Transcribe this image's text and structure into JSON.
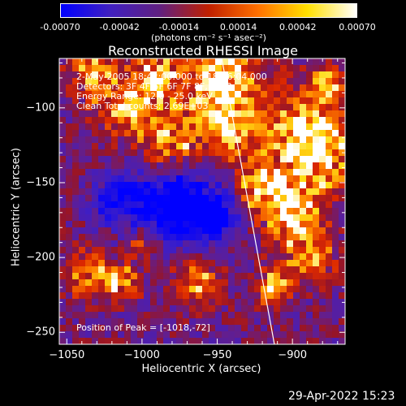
{
  "chart_data": {
    "type": "heatmap",
    "title": "Reconstructed RHESSI Image",
    "xlabel": "Heliocentric X (arcsec)",
    "ylabel": "Heliocentric Y (arcsec)",
    "xlim": [
      -1055,
      -865
    ],
    "ylim": [
      -258,
      -67
    ],
    "xticks": [
      -1050,
      -1000,
      -950,
      -900
    ],
    "yticks": [
      -250,
      -200,
      -150,
      -100
    ],
    "colorbar": {
      "ticks": [
        "-0.00070",
        "-0.00042",
        "-0.00014",
        "0.00014",
        "0.00042",
        "0.00070"
      ],
      "range": [
        -0.0007,
        0.0007
      ],
      "units": "(photons cm⁻² s⁻¹ asec⁻²)",
      "colors": [
        "#0000ff",
        "#4020c0",
        "#602080",
        "#c02000",
        "#ff7000",
        "#ffe000",
        "#ffffff"
      ]
    },
    "annotations": {
      "time": "2-May-2005 18:42:00.000 to 18:46:04.000",
      "detectors": "Detectors: 3F 4F 5F 6F 7F 8F, Att 0",
      "energy": "Energy Range: 12.0 - 25.0 keV",
      "clean": "Clean    Total counts: 2.69E+03",
      "peak": "Position of Peak = [-1018,-72]"
    },
    "limb_line": {
      "x": [
        -947,
        -912
      ],
      "y": [
        -67,
        -258
      ]
    }
  },
  "timestamp": "29-Apr-2022 15:23"
}
